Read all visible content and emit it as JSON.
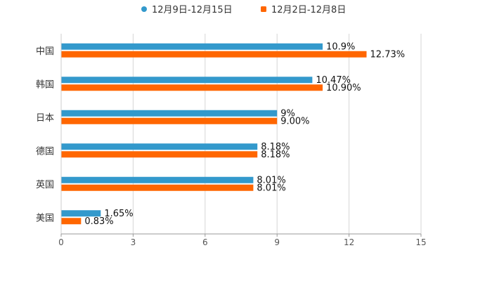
{
  "chart_data": {
    "type": "bar",
    "orientation": "horizontal",
    "title": "",
    "xlabel": "",
    "ylabel": "",
    "xlim": [
      0,
      15
    ],
    "xticks": [
      0,
      3,
      6,
      9,
      12,
      15
    ],
    "xtick_labels": [
      "0",
      "3",
      "6",
      "9",
      "12",
      "15"
    ],
    "grid": true,
    "legend_position": "top-center",
    "categories": [
      "中国",
      "韩国",
      "日本",
      "德国",
      "英国",
      "美国"
    ],
    "series": [
      {
        "name": "12月9日-12月15日",
        "color": "#3399cc",
        "values": [
          10.9,
          10.47,
          9,
          8.18,
          8.01,
          1.65
        ],
        "labels": [
          "10.9%",
          "10.47%",
          "9%",
          "8.18%",
          "8.01%",
          "1.65%"
        ]
      },
      {
        "name": "12月2日-12月8日",
        "color": "#ff6600",
        "values": [
          12.73,
          10.9,
          9.0,
          8.18,
          8.01,
          0.83
        ],
        "labels": [
          "12.73%",
          "10.90%",
          "9.00%",
          "8.18%",
          "8.01%",
          "0.83%"
        ]
      }
    ]
  }
}
